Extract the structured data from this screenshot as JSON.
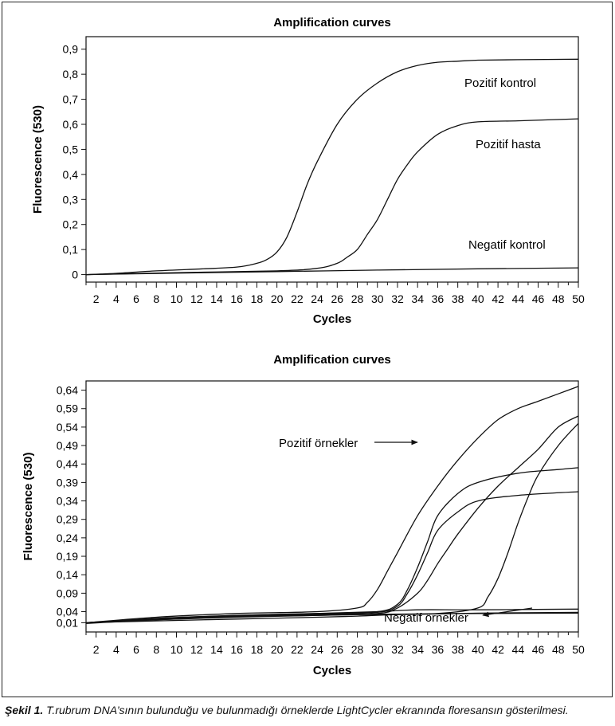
{
  "caption": {
    "label": "Şekil 1.",
    "text": "T.rubrum DNA’sının bulunduğu ve bulunmadığı örneklerde LightCycler ekranında floresansın gösterilmesi."
  },
  "chart_data": [
    {
      "type": "line",
      "title": "Amplification curves",
      "xlabel": "Cycles",
      "ylabel": "Fluorescence (530)",
      "xlim": [
        1,
        50
      ],
      "ylim": [
        -0.03,
        0.95
      ],
      "x_ticks": [
        2,
        4,
        6,
        8,
        10,
        12,
        14,
        16,
        18,
        20,
        22,
        24,
        26,
        28,
        30,
        32,
        34,
        36,
        38,
        40,
        42,
        44,
        46,
        48,
        50
      ],
      "y_ticks": [
        0,
        0.1,
        0.2,
        0.3,
        0.4,
        0.5,
        0.6,
        0.7,
        0.8,
        0.9
      ],
      "y_tick_labels": [
        "0",
        "0,1",
        "0,2",
        "0,3",
        "0,4",
        "0,5",
        "0,6",
        "0,7",
        "0,8",
        "0,9"
      ],
      "grid": false,
      "series": [
        {
          "name": "Pozitif kontrol",
          "x": [
            1,
            4,
            8,
            12,
            16,
            18,
            19,
            20,
            21,
            22,
            23,
            24,
            26,
            28,
            30,
            32,
            34,
            36,
            38,
            40,
            44,
            50
          ],
          "y": [
            0,
            0.005,
            0.015,
            0.022,
            0.03,
            0.045,
            0.06,
            0.09,
            0.15,
            0.25,
            0.36,
            0.45,
            0.6,
            0.7,
            0.765,
            0.81,
            0.835,
            0.848,
            0.852,
            0.856,
            0.858,
            0.86
          ]
        },
        {
          "name": "Pozitif hasta",
          "x": [
            1,
            10,
            20,
            24,
            26,
            27,
            28,
            29,
            30,
            31,
            32,
            33,
            34,
            36,
            38,
            40,
            44,
            50
          ],
          "y": [
            0,
            0.008,
            0.015,
            0.025,
            0.045,
            0.07,
            0.1,
            0.16,
            0.22,
            0.3,
            0.38,
            0.44,
            0.49,
            0.56,
            0.595,
            0.61,
            0.614,
            0.622
          ]
        },
        {
          "name": "Negatif kontrol",
          "x": [
            1,
            10,
            20,
            30,
            40,
            50
          ],
          "y": [
            0,
            0.006,
            0.012,
            0.018,
            0.023,
            0.027
          ]
        }
      ],
      "annotations": [
        "Pozitif kontrol",
        "Pozitif hasta",
        "Negatif kontrol"
      ]
    },
    {
      "type": "line",
      "title": "Amplification curves",
      "xlabel": "Cycles",
      "ylabel": "Fluorescence (530)",
      "xlim": [
        1,
        50
      ],
      "ylim": [
        -0.015,
        0.665
      ],
      "x_ticks": [
        2,
        4,
        6,
        8,
        10,
        12,
        14,
        16,
        18,
        20,
        22,
        24,
        26,
        28,
        30,
        32,
        34,
        36,
        38,
        40,
        42,
        44,
        46,
        48,
        50
      ],
      "y_ticks": [
        0.01,
        0.04,
        0.09,
        0.14,
        0.19,
        0.24,
        0.29,
        0.34,
        0.39,
        0.44,
        0.49,
        0.54,
        0.59,
        0.64
      ],
      "y_tick_labels": [
        "0,01",
        "0,04",
        "0,09",
        "0,14",
        "0,19",
        "0,24",
        "0,29",
        "0,34",
        "0,39",
        "0,44",
        "0,49",
        "0,54",
        "0,59",
        "0,64"
      ],
      "grid": false,
      "series": [
        {
          "x": [
            1,
            8,
            16,
            24,
            28,
            29,
            30,
            31,
            32,
            34,
            36,
            38,
            40,
            42,
            44,
            46,
            48,
            50
          ],
          "y": [
            0.01,
            0.025,
            0.035,
            0.04,
            0.05,
            0.065,
            0.1,
            0.15,
            0.2,
            0.3,
            0.38,
            0.45,
            0.51,
            0.56,
            0.59,
            0.61,
            0.63,
            0.65
          ]
        },
        {
          "x": [
            1,
            8,
            16,
            24,
            30,
            32,
            33,
            34,
            35,
            36,
            38,
            40,
            44,
            48,
            50
          ],
          "y": [
            0.01,
            0.022,
            0.03,
            0.035,
            0.04,
            0.06,
            0.1,
            0.16,
            0.23,
            0.3,
            0.36,
            0.39,
            0.415,
            0.425,
            0.43
          ]
        },
        {
          "x": [
            1,
            8,
            16,
            24,
            30,
            32,
            33,
            34,
            35,
            36,
            38,
            40,
            44,
            50
          ],
          "y": [
            0.01,
            0.02,
            0.028,
            0.033,
            0.038,
            0.055,
            0.09,
            0.14,
            0.2,
            0.26,
            0.31,
            0.34,
            0.355,
            0.365
          ]
        },
        {
          "x": [
            1,
            8,
            16,
            24,
            30,
            32,
            34,
            35,
            36,
            37,
            38,
            40,
            42,
            44,
            46,
            48,
            50
          ],
          "y": [
            0.01,
            0.02,
            0.028,
            0.032,
            0.035,
            0.05,
            0.09,
            0.125,
            0.17,
            0.21,
            0.25,
            0.32,
            0.38,
            0.43,
            0.48,
            0.54,
            0.57
          ]
        },
        {
          "x": [
            1,
            8,
            16,
            24,
            30,
            36,
            40,
            41,
            42,
            43,
            44,
            45,
            46,
            48,
            50
          ],
          "y": [
            0.01,
            0.018,
            0.025,
            0.03,
            0.033,
            0.035,
            0.05,
            0.08,
            0.13,
            0.2,
            0.28,
            0.35,
            0.41,
            0.49,
            0.55
          ]
        },
        {
          "x": [
            1,
            8,
            16,
            24,
            30,
            34,
            40,
            50
          ],
          "y": [
            0.01,
            0.02,
            0.03,
            0.035,
            0.04,
            0.045,
            0.045,
            0.047
          ]
        },
        {
          "x": [
            1,
            8,
            16,
            24,
            28,
            32,
            40,
            50
          ],
          "y": [
            0.01,
            0.015,
            0.02,
            0.025,
            0.028,
            0.032,
            0.036,
            0.038
          ]
        },
        {
          "x": [
            1,
            8,
            16,
            24,
            30,
            40,
            50
          ],
          "y": [
            0.008,
            0.018,
            0.026,
            0.03,
            0.033,
            0.035,
            0.036
          ]
        }
      ],
      "annotations": [
        "Pozitif örnekler",
        "Negatif örnekler"
      ]
    }
  ]
}
